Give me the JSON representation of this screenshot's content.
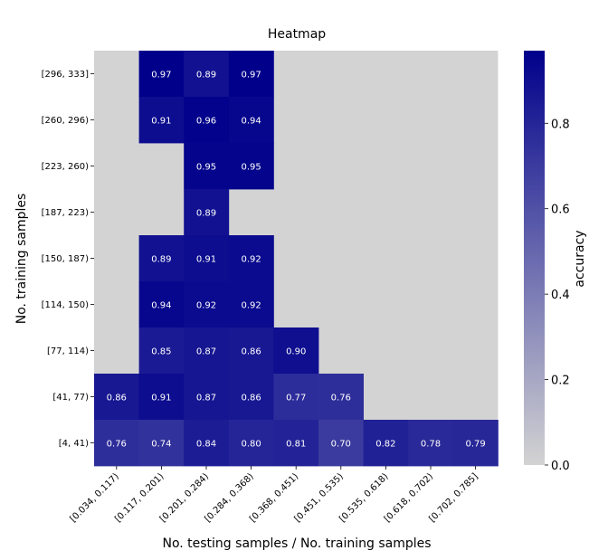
{
  "chart_data": {
    "type": "heatmap",
    "title": "Heatmap",
    "xlabel": "No. testing samples / No. training samples",
    "ylabel": "No. training samples",
    "x_categories": [
      "[0.034, 0.117)",
      "[0.117, 0.201)",
      "[0.201, 0.284)",
      "[0.284, 0.368)",
      "[0.368, 0.451)",
      "[0.451, 0.535)",
      "[0.535, 0.618)",
      "[0.618, 0.702)",
      "[0.702, 0.785]"
    ],
    "y_categories": [
      "[296, 333]",
      "[260, 296)",
      "[223, 260)",
      "[187, 223)",
      "[150, 187)",
      "[114, 150)",
      "[77, 114)",
      "[41, 77)",
      "[4, 41)"
    ],
    "values": [
      [
        null,
        0.97,
        0.89,
        0.97,
        null,
        null,
        null,
        null,
        null
      ],
      [
        null,
        0.91,
        0.96,
        0.94,
        null,
        null,
        null,
        null,
        null
      ],
      [
        null,
        null,
        0.95,
        0.95,
        null,
        null,
        null,
        null,
        null
      ],
      [
        null,
        null,
        0.89,
        null,
        null,
        null,
        null,
        null,
        null
      ],
      [
        null,
        0.89,
        0.91,
        0.92,
        null,
        null,
        null,
        null,
        null
      ],
      [
        null,
        0.94,
        0.92,
        0.92,
        null,
        null,
        null,
        null,
        null
      ],
      [
        null,
        0.85,
        0.87,
        0.86,
        0.9,
        null,
        null,
        null,
        null
      ],
      [
        0.86,
        0.91,
        0.87,
        0.86,
        0.77,
        0.76,
        null,
        null,
        null
      ],
      [
        0.76,
        0.74,
        0.84,
        0.8,
        0.81,
        0.7,
        0.82,
        0.78,
        0.79
      ]
    ],
    "colorbar": {
      "label": "accuracy",
      "range": [
        0.0,
        0.97
      ],
      "ticks": [
        0.0,
        0.2,
        0.4,
        0.6,
        0.8
      ],
      "tick_labels": [
        "0.0",
        "0.2",
        "0.4",
        "0.6",
        "0.8"
      ],
      "color_low": "#d3d3d3",
      "color_high": "#00008b"
    },
    "missing_color": "#d3d3d3"
  }
}
